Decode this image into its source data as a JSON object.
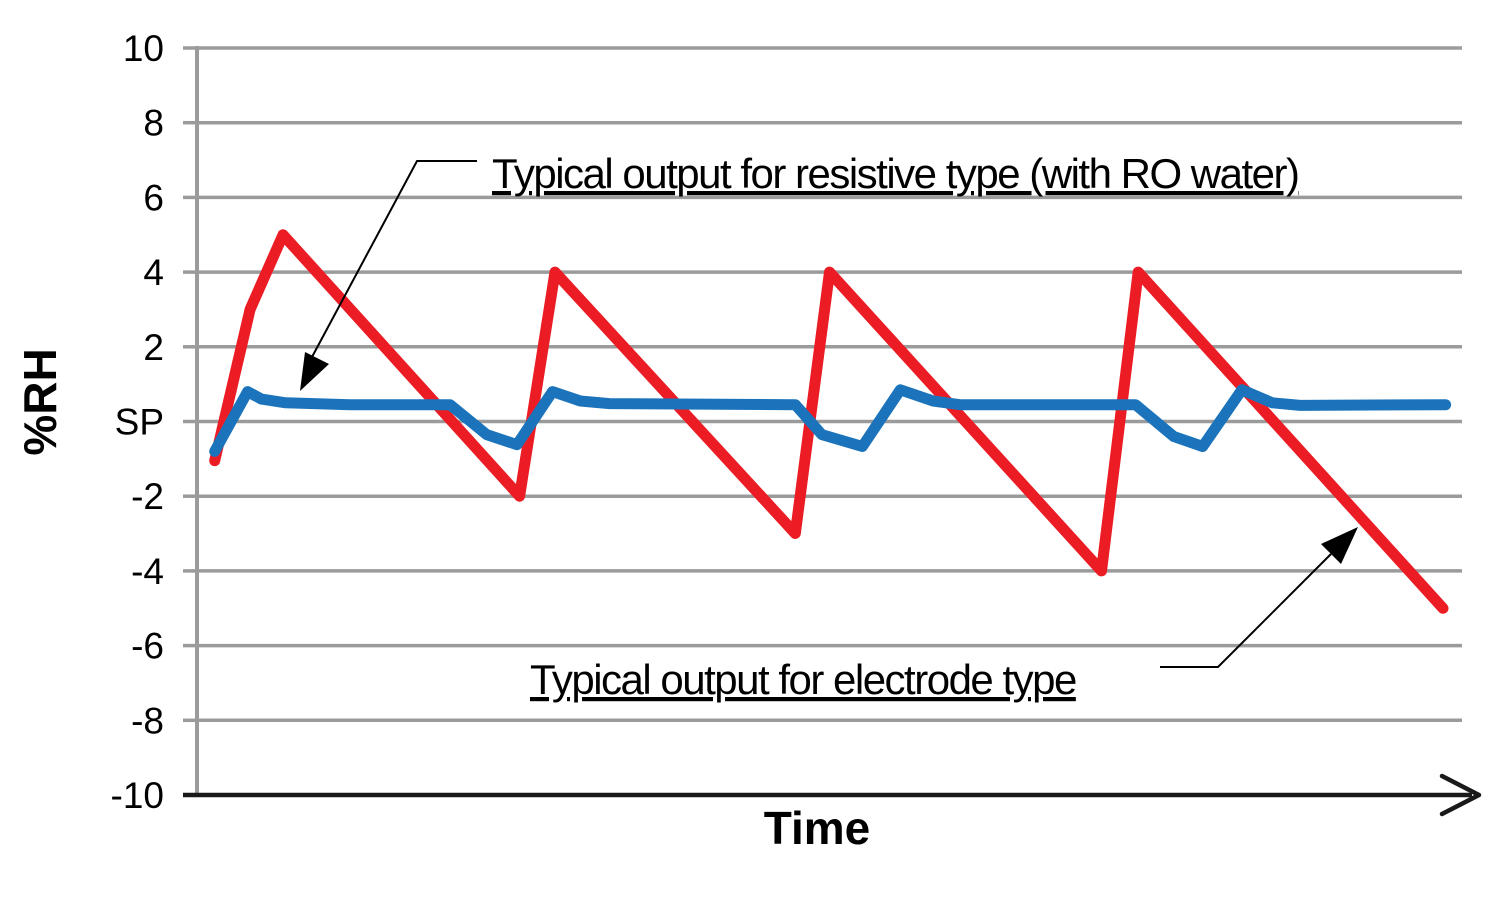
{
  "axes": {
    "y_label": "%RH",
    "x_label": "Time",
    "y_ticks": [
      "10",
      "8",
      "6",
      "4",
      "2",
      "SP",
      "-2",
      "-4",
      "-6",
      "-8",
      "-10"
    ]
  },
  "annotations": {
    "resistive": "Typical output for resistive type (with RO water)",
    "electrode": "Typical output for electrode type"
  },
  "colors": {
    "red": "#EC1C24",
    "blue": "#1B74BB",
    "grid": "#9B9B9B",
    "axis": "#1A1A1A",
    "text": "#000000"
  },
  "chart_data": {
    "type": "line",
    "title": "",
    "xlabel": "Time",
    "ylabel": "%RH",
    "xlim": [
      0,
      100
    ],
    "ylim": [
      -10,
      10
    ],
    "grid": "horizontal",
    "legend_position": "none",
    "y_tick_values": [
      10,
      8,
      6,
      4,
      2,
      0,
      -2,
      -4,
      -6,
      -8,
      -10
    ],
    "y_tick_labels": [
      "10",
      "8",
      "6",
      "4",
      "2",
      "SP",
      "-2",
      "-4",
      "-6",
      "-8",
      "-10"
    ],
    "series": [
      {
        "name": "Typical output for electrode type",
        "color": "#EC1C24",
        "x": [
          1.4,
          4.2,
          6.8,
          25.5,
          28.3,
          47.3,
          50.0,
          71.5,
          74.4,
          98.5
        ],
        "y": [
          -1.05,
          3,
          5,
          -2,
          4,
          -3,
          4,
          -4,
          4,
          -5
        ]
      },
      {
        "name": "Typical output for resistive type (with RO water)",
        "color": "#1B74BB",
        "x": [
          1.4,
          4.0,
          5.1,
          7.0,
          12.1,
          20.0,
          22.9,
          25.3,
          28.1,
          30.3,
          32.6,
          47.3,
          49.4,
          52.6,
          55.6,
          58.2,
          60.3,
          74.2,
          77.2,
          79.5,
          82.6,
          85.0,
          87.2,
          98.7
        ],
        "y": [
          -0.8,
          0.8,
          0.6,
          0.5,
          0.45,
          0.45,
          -0.35,
          -0.62,
          0.8,
          0.55,
          0.48,
          0.45,
          -0.35,
          -0.67,
          0.85,
          0.55,
          0.45,
          0.45,
          -0.4,
          -0.67,
          0.85,
          0.5,
          0.43,
          0.45
        ]
      }
    ]
  }
}
